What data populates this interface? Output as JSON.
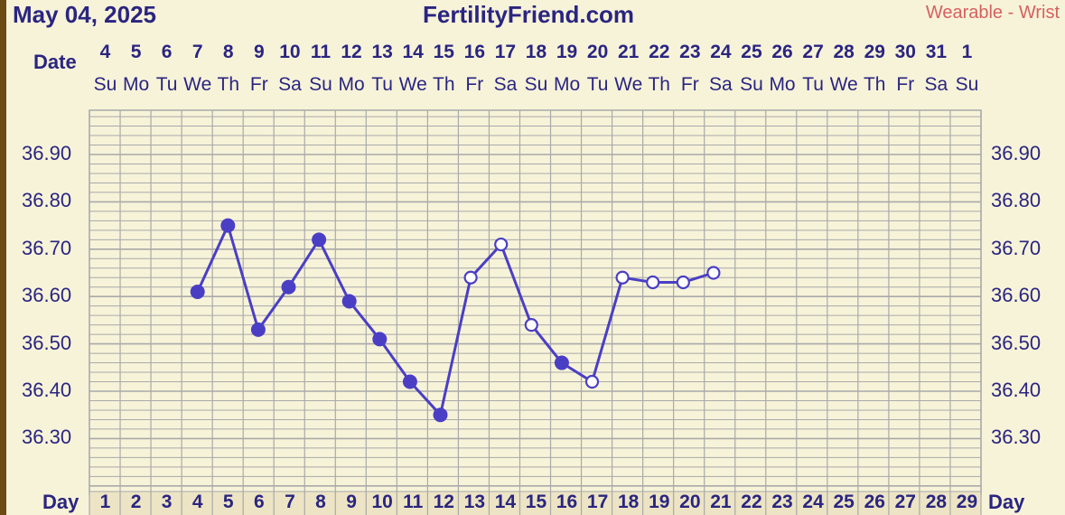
{
  "header": {
    "date": "May 04, 2025",
    "site": "FertilityFriend.com",
    "source": "Wearable - Wrist"
  },
  "labels": {
    "date": "Date",
    "day": "Day"
  },
  "colors": {
    "background": "#f7f3d9",
    "grid": "#a9a9a9",
    "series": "#4a3fc4",
    "text": "#2a2580",
    "source_label": "#d66060",
    "day_row_background": "#ece4c4"
  },
  "chart_data": {
    "type": "line",
    "dates": [
      "4",
      "5",
      "6",
      "7",
      "8",
      "9",
      "10",
      "11",
      "12",
      "13",
      "14",
      "15",
      "16",
      "17",
      "18",
      "19",
      "20",
      "21",
      "22",
      "23",
      "24",
      "25",
      "26",
      "27",
      "28",
      "29",
      "30",
      "31",
      "1"
    ],
    "weekdays": [
      "Su",
      "Mo",
      "Tu",
      "We",
      "Th",
      "Fr",
      "Sa",
      "Su",
      "Mo",
      "Tu",
      "We",
      "Th",
      "Fr",
      "Sa",
      "Su",
      "Mo",
      "Tu",
      "We",
      "Th",
      "Fr",
      "Sa",
      "Su",
      "Mo",
      "Tu",
      "We",
      "Th",
      "Fr",
      "Sa",
      "Su"
    ],
    "days": [
      1,
      2,
      3,
      4,
      5,
      6,
      7,
      8,
      9,
      10,
      11,
      12,
      13,
      14,
      15,
      16,
      17,
      18,
      19,
      20,
      21,
      22,
      23,
      24,
      25,
      26,
      27,
      28,
      29
    ],
    "y_ticks": [
      "36.90",
      "36.80",
      "36.70",
      "36.60",
      "36.50",
      "36.40",
      "36.30"
    ],
    "ylim": [
      36.2,
      37.0
    ],
    "grid": true,
    "series": [
      {
        "points": [
          {
            "day": 4,
            "temp": 36.61,
            "marker": "filled"
          },
          {
            "day": 5,
            "temp": 36.75,
            "marker": "filled"
          },
          {
            "day": 6,
            "temp": 36.53,
            "marker": "filled"
          },
          {
            "day": 7,
            "temp": 36.62,
            "marker": "filled"
          },
          {
            "day": 8,
            "temp": 36.72,
            "marker": "filled"
          },
          {
            "day": 9,
            "temp": 36.59,
            "marker": "filled"
          },
          {
            "day": 10,
            "temp": 36.51,
            "marker": "filled"
          },
          {
            "day": 11,
            "temp": 36.42,
            "marker": "filled"
          },
          {
            "day": 12,
            "temp": 36.35,
            "marker": "filled"
          },
          {
            "day": 13,
            "temp": 36.64,
            "marker": "open"
          },
          {
            "day": 14,
            "temp": 36.71,
            "marker": "open"
          },
          {
            "day": 15,
            "temp": 36.54,
            "marker": "open"
          },
          {
            "day": 16,
            "temp": 36.46,
            "marker": "filled"
          },
          {
            "day": 17,
            "temp": 36.42,
            "marker": "open"
          },
          {
            "day": 18,
            "temp": 36.64,
            "marker": "open"
          },
          {
            "day": 19,
            "temp": 36.63,
            "marker": "open"
          },
          {
            "day": 20,
            "temp": 36.63,
            "marker": "open"
          },
          {
            "day": 21,
            "temp": 36.65,
            "marker": "open"
          }
        ]
      }
    ]
  }
}
